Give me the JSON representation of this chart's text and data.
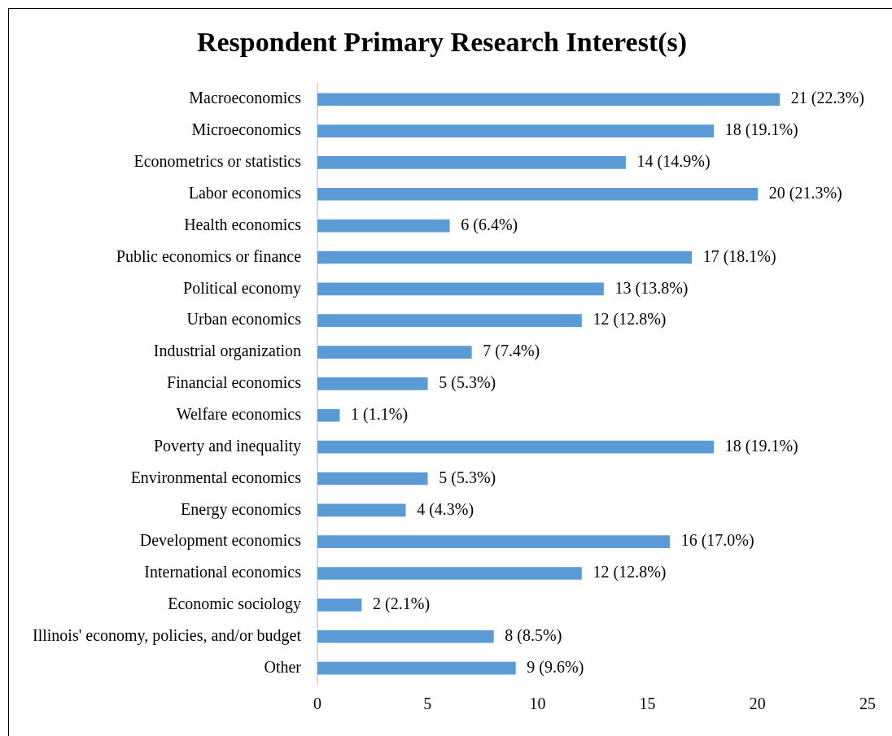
{
  "chart_data": {
    "type": "bar",
    "orientation": "horizontal",
    "title": "Respondent Primary Research Interest(s)",
    "categories": [
      "Macroeconomics",
      "Microeconomics",
      "Econometrics or statistics",
      "Labor economics",
      "Health economics",
      "Public economics or finance",
      "Political economy",
      "Urban economics",
      "Industrial organization",
      "Financial economics",
      "Welfare economics",
      "Poverty and inequality",
      "Environmental economics",
      "Energy economics",
      "Development economics",
      "International economics",
      "Economic sociology",
      "Illinois' economy, policies, and/or budget",
      "Other"
    ],
    "values": [
      21,
      18,
      14,
      20,
      6,
      17,
      13,
      12,
      7,
      5,
      1,
      18,
      5,
      4,
      16,
      12,
      2,
      8,
      9
    ],
    "value_labels": [
      "21 (22.3%)",
      "18 (19.1%)",
      "14 (14.9%)",
      "20 (21.3%)",
      "6 (6.4%)",
      "17 (18.1%)",
      "13 (13.8%)",
      "12 (12.8%)",
      "7 (7.4%)",
      "5 (5.3%)",
      "1 (1.1%)",
      "18 (19.1%)",
      "5 (5.3%)",
      "4 (4.3%)",
      "16 (17.0%)",
      "12 (12.8%)",
      "2 (2.1%)",
      "8 (8.5%)",
      "9 (9.6%)"
    ],
    "color": "#5b9bd5",
    "xlim": [
      0,
      25
    ],
    "xticks": [
      0,
      5,
      10,
      15,
      20,
      25
    ],
    "grid": false,
    "legend": false
  }
}
